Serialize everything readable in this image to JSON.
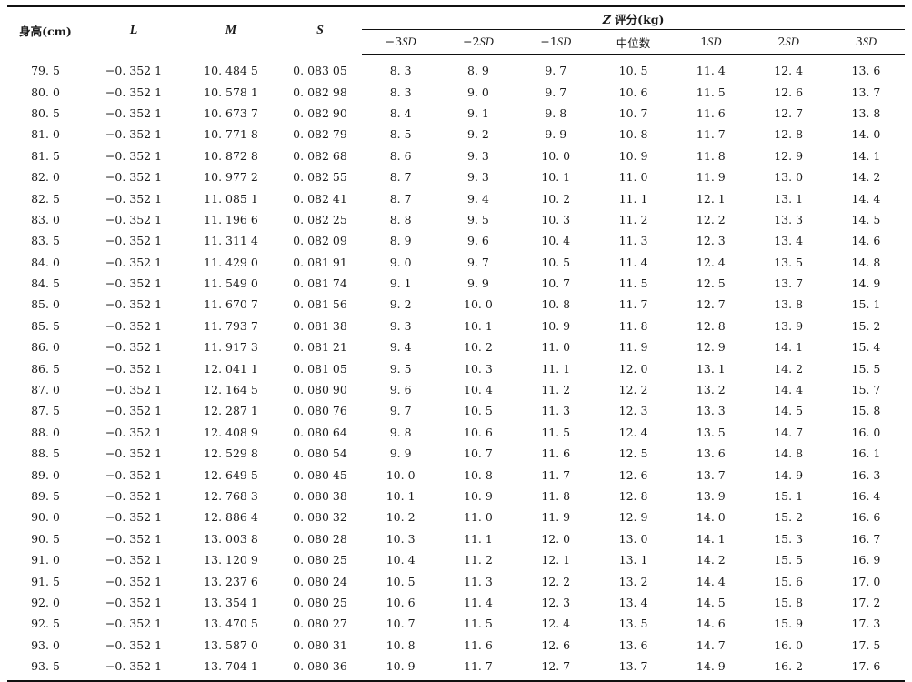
{
  "headers": {
    "height": "身高(cm)",
    "L": "L",
    "M": "M",
    "S": "S",
    "zgroup_prefix": "Z",
    "zgroup_rest": " 评分(kg)",
    "sd": [
      {
        "pre": "−3",
        "post": "SD"
      },
      {
        "pre": "−2",
        "post": "SD"
      },
      {
        "pre": "−1",
        "post": "SD"
      },
      {
        "pre": "中位数",
        "post": ""
      },
      {
        "pre": "1",
        "post": "SD"
      },
      {
        "pre": "2",
        "post": "SD"
      },
      {
        "pre": "3",
        "post": "SD"
      }
    ]
  },
  "rows": [
    [
      "79. 5",
      "−0. 352 1",
      "10. 484 5",
      "0. 083 05",
      "8. 3",
      "8. 9",
      "9. 7",
      "10. 5",
      "11. 4",
      "12. 4",
      "13. 6"
    ],
    [
      "80. 0",
      "−0. 352 1",
      "10. 578 1",
      "0. 082 98",
      "8. 3",
      "9. 0",
      "9. 7",
      "10. 6",
      "11. 5",
      "12. 6",
      "13. 7"
    ],
    [
      "80. 5",
      "−0. 352 1",
      "10. 673 7",
      "0. 082 90",
      "8. 4",
      "9. 1",
      "9. 8",
      "10. 7",
      "11. 6",
      "12. 7",
      "13. 8"
    ],
    [
      "81. 0",
      "−0. 352 1",
      "10. 771 8",
      "0. 082 79",
      "8. 5",
      "9. 2",
      "9. 9",
      "10. 8",
      "11. 7",
      "12. 8",
      "14. 0"
    ],
    [
      "81. 5",
      "−0. 352 1",
      "10. 872 8",
      "0. 082 68",
      "8. 6",
      "9. 3",
      "10. 0",
      "10. 9",
      "11. 8",
      "12. 9",
      "14. 1"
    ],
    [
      "82. 0",
      "−0. 352 1",
      "10. 977 2",
      "0. 082 55",
      "8. 7",
      "9. 3",
      "10. 1",
      "11. 0",
      "11. 9",
      "13. 0",
      "14. 2"
    ],
    [
      "82. 5",
      "−0. 352 1",
      "11. 085 1",
      "0. 082 41",
      "8. 7",
      "9. 4",
      "10. 2",
      "11. 1",
      "12. 1",
      "13. 1",
      "14. 4"
    ],
    [
      "83. 0",
      "−0. 352 1",
      "11. 196 6",
      "0. 082 25",
      "8. 8",
      "9. 5",
      "10. 3",
      "11. 2",
      "12. 2",
      "13. 3",
      "14. 5"
    ],
    [
      "83. 5",
      "−0. 352 1",
      "11. 311 4",
      "0. 082 09",
      "8. 9",
      "9. 6",
      "10. 4",
      "11. 3",
      "12. 3",
      "13. 4",
      "14. 6"
    ],
    [
      "84. 0",
      "−0. 352 1",
      "11. 429 0",
      "0. 081 91",
      "9. 0",
      "9. 7",
      "10. 5",
      "11. 4",
      "12. 4",
      "13. 5",
      "14. 8"
    ],
    [
      "84. 5",
      "−0. 352 1",
      "11. 549 0",
      "0. 081 74",
      "9. 1",
      "9. 9",
      "10. 7",
      "11. 5",
      "12. 5",
      "13. 7",
      "14. 9"
    ],
    [
      "85. 0",
      "−0. 352 1",
      "11. 670 7",
      "0. 081 56",
      "9. 2",
      "10. 0",
      "10. 8",
      "11. 7",
      "12. 7",
      "13. 8",
      "15. 1"
    ],
    [
      "85. 5",
      "−0. 352 1",
      "11. 793 7",
      "0. 081 38",
      "9. 3",
      "10. 1",
      "10. 9",
      "11. 8",
      "12. 8",
      "13. 9",
      "15. 2"
    ],
    [
      "86. 0",
      "−0. 352 1",
      "11. 917 3",
      "0. 081 21",
      "9. 4",
      "10. 2",
      "11. 0",
      "11. 9",
      "12. 9",
      "14. 1",
      "15. 4"
    ],
    [
      "86. 5",
      "−0. 352 1",
      "12. 041 1",
      "0. 081 05",
      "9. 5",
      "10. 3",
      "11. 1",
      "12. 0",
      "13. 1",
      "14. 2",
      "15. 5"
    ],
    [
      "87. 0",
      "−0. 352 1",
      "12. 164 5",
      "0. 080 90",
      "9. 6",
      "10. 4",
      "11. 2",
      "12. 2",
      "13. 2",
      "14. 4",
      "15. 7"
    ],
    [
      "87. 5",
      "−0. 352 1",
      "12. 287 1",
      "0. 080 76",
      "9. 7",
      "10. 5",
      "11. 3",
      "12. 3",
      "13. 3",
      "14. 5",
      "15. 8"
    ],
    [
      "88. 0",
      "−0. 352 1",
      "12. 408 9",
      "0. 080 64",
      "9. 8",
      "10. 6",
      "11. 5",
      "12. 4",
      "13. 5",
      "14. 7",
      "16. 0"
    ],
    [
      "88. 5",
      "−0. 352 1",
      "12. 529 8",
      "0. 080 54",
      "9. 9",
      "10. 7",
      "11. 6",
      "12. 5",
      "13. 6",
      "14. 8",
      "16. 1"
    ],
    [
      "89. 0",
      "−0. 352 1",
      "12. 649 5",
      "0. 080 45",
      "10. 0",
      "10. 8",
      "11. 7",
      "12. 6",
      "13. 7",
      "14. 9",
      "16. 3"
    ],
    [
      "89. 5",
      "−0. 352 1",
      "12. 768 3",
      "0. 080 38",
      "10. 1",
      "10. 9",
      "11. 8",
      "12. 8",
      "13. 9",
      "15. 1",
      "16. 4"
    ],
    [
      "90. 0",
      "−0. 352 1",
      "12. 886 4",
      "0. 080 32",
      "10. 2",
      "11. 0",
      "11. 9",
      "12. 9",
      "14. 0",
      "15. 2",
      "16. 6"
    ],
    [
      "90. 5",
      "−0. 352 1",
      "13. 003 8",
      "0. 080 28",
      "10. 3",
      "11. 1",
      "12. 0",
      "13. 0",
      "14. 1",
      "15. 3",
      "16. 7"
    ],
    [
      "91. 0",
      "−0. 352 1",
      "13. 120 9",
      "0. 080 25",
      "10. 4",
      "11. 2",
      "12. 1",
      "13. 1",
      "14. 2",
      "15. 5",
      "16. 9"
    ],
    [
      "91. 5",
      "−0. 352 1",
      "13. 237 6",
      "0. 080 24",
      "10. 5",
      "11. 3",
      "12. 2",
      "13. 2",
      "14. 4",
      "15. 6",
      "17. 0"
    ],
    [
      "92. 0",
      "−0. 352 1",
      "13. 354 1",
      "0. 080 25",
      "10. 6",
      "11. 4",
      "12. 3",
      "13. 4",
      "14. 5",
      "15. 8",
      "17. 2"
    ],
    [
      "92. 5",
      "−0. 352 1",
      "13. 470 5",
      "0. 080 27",
      "10. 7",
      "11. 5",
      "12. 4",
      "13. 5",
      "14. 6",
      "15. 9",
      "17. 3"
    ],
    [
      "93. 0",
      "−0. 352 1",
      "13. 587 0",
      "0. 080 31",
      "10. 8",
      "11. 6",
      "12. 6",
      "13. 6",
      "14. 7",
      "16. 0",
      "17. 5"
    ],
    [
      "93. 5",
      "−0. 352 1",
      "13. 704 1",
      "0. 080 36",
      "10. 9",
      "11. 7",
      "12. 7",
      "13. 7",
      "14. 9",
      "16. 2",
      "17. 6"
    ]
  ]
}
